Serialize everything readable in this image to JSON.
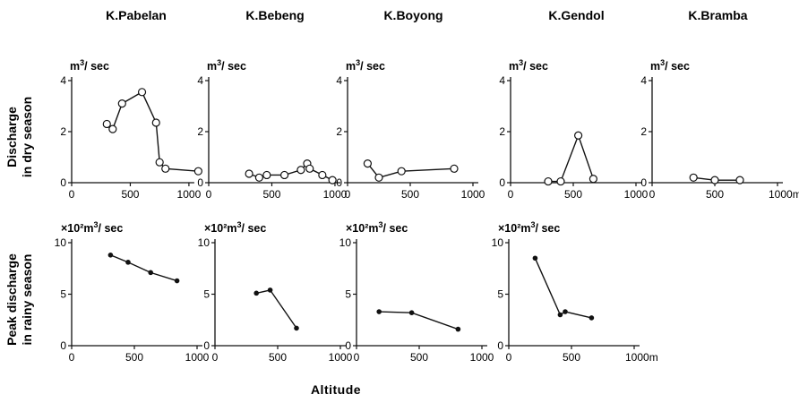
{
  "chart_data": [
    {
      "type": "line",
      "title": "K.Pabelan",
      "row_label": [
        "Discharge",
        "in dry season"
      ],
      "unit_label": "m3/ sec",
      "xlim": [
        0,
        1100
      ],
      "ylim": [
        0,
        4
      ],
      "xticks": [
        0,
        500,
        1000
      ],
      "yticks": [
        0,
        2,
        4
      ],
      "xtick_labels": [
        "0",
        "500",
        "1000"
      ],
      "ytick_labels": [
        "0",
        "2",
        "4"
      ],
      "marker": "open",
      "x": [
        300,
        350,
        430,
        600,
        720,
        750,
        800,
        1080
      ],
      "y": [
        2.3,
        2.1,
        3.1,
        3.55,
        2.35,
        0.8,
        0.55,
        0.45
      ]
    },
    {
      "type": "line",
      "title": "K.Bebeng",
      "unit_label": "m3/ sec",
      "xlim": [
        0,
        1050
      ],
      "ylim": [
        0,
        4
      ],
      "xticks": [
        0,
        500,
        1000
      ],
      "yticks": [
        0,
        2,
        4
      ],
      "xtick_labels": [
        "0",
        "500",
        "1000"
      ],
      "ytick_labels": [
        "0",
        "2",
        "4"
      ],
      "marker": "open",
      "x": [
        320,
        400,
        460,
        600,
        730,
        780,
        800,
        900,
        980
      ],
      "y": [
        0.35,
        0.2,
        0.3,
        0.3,
        0.5,
        0.75,
        0.55,
        0.3,
        0.1
      ]
    },
    {
      "type": "line",
      "title": "K.Boyong",
      "unit_label": "m3/ sec",
      "xlim": [
        0,
        1050
      ],
      "ylim": [
        0,
        4
      ],
      "xticks": [
        0,
        500,
        1000
      ],
      "yticks": [
        0,
        2,
        4
      ],
      "xtick_labels": [
        "0",
        "500",
        "1000"
      ],
      "ytick_labels": [
        "0",
        "2",
        "4"
      ],
      "marker": "open",
      "x": [
        160,
        250,
        430,
        850
      ],
      "y": [
        0.75,
        0.2,
        0.45,
        0.55
      ]
    },
    {
      "type": "line",
      "title": "K.Gendol",
      "unit_label": "m3/ sec",
      "xlim": [
        0,
        1050
      ],
      "ylim": [
        0,
        4
      ],
      "xticks": [
        0,
        500,
        1000
      ],
      "yticks": [
        0,
        2,
        4
      ],
      "xtick_labels": [
        "0",
        "500",
        "1000"
      ],
      "ytick_labels": [
        "0",
        "2",
        "4"
      ],
      "marker": "open",
      "x": [
        300,
        400,
        540,
        660
      ],
      "y": [
        0.05,
        0.05,
        1.85,
        0.15
      ]
    },
    {
      "type": "line",
      "title": "K.Bramba",
      "unit_label": "m3/ sec",
      "xlim": [
        0,
        1050
      ],
      "ylim": [
        0,
        4
      ],
      "xticks": [
        0,
        500,
        1000
      ],
      "yticks": [
        0,
        2,
        4
      ],
      "xtick_labels": [
        "0",
        "500",
        "1000m"
      ],
      "ytick_labels": [
        "0",
        "2",
        "4"
      ],
      "marker": "open",
      "x": [
        330,
        500,
        700
      ],
      "y": [
        0.2,
        0.1,
        0.1
      ]
    },
    {
      "type": "line",
      "row_label": [
        "Peak discharge",
        "in rainy season"
      ],
      "unit_label": "×10²m3/ sec",
      "xlim": [
        0,
        1050
      ],
      "ylim": [
        0,
        10
      ],
      "xticks": [
        0,
        500,
        1000
      ],
      "yticks": [
        0,
        5,
        10
      ],
      "xtick_labels": [
        "0",
        "500",
        "1000"
      ],
      "ytick_labels": [
        "0",
        "5",
        "10"
      ],
      "marker": "filled",
      "x": [
        310,
        450,
        630,
        840
      ],
      "y": [
        8.8,
        8.1,
        7.1,
        6.3
      ]
    },
    {
      "type": "line",
      "unit_label": "×10²m3/ sec",
      "xlim": [
        0,
        1050
      ],
      "ylim": [
        0,
        10
      ],
      "xticks": [
        0,
        500,
        1000
      ],
      "yticks": [
        0,
        5,
        10
      ],
      "xtick_labels": [
        "0",
        "500",
        "1000"
      ],
      "ytick_labels": [
        "0",
        "5",
        "10"
      ],
      "marker": "filled",
      "x": [
        330,
        440,
        650
      ],
      "y": [
        5.1,
        5.4,
        1.7
      ]
    },
    {
      "type": "line",
      "unit_label": "×10²m3/ sec",
      "xlim": [
        0,
        1050
      ],
      "ylim": [
        0,
        10
      ],
      "xticks": [
        0,
        500,
        1000
      ],
      "yticks": [
        0,
        5,
        10
      ],
      "xtick_labels": [
        "0",
        "500",
        "1000"
      ],
      "ytick_labels": [
        "0",
        "5",
        "10"
      ],
      "marker": "filled",
      "x": [
        180,
        440,
        810
      ],
      "y": [
        3.3,
        3.2,
        1.6
      ]
    },
    {
      "type": "line",
      "unit_label": "×10²m3/ sec",
      "xlim": [
        0,
        1050
      ],
      "ylim": [
        0,
        10
      ],
      "xticks": [
        0,
        500,
        1000
      ],
      "yticks": [
        0,
        5,
        10
      ],
      "xtick_labels": [
        "0",
        "500",
        "1000m"
      ],
      "ytick_labels": [
        "0",
        "5",
        "10"
      ],
      "marker": "filled",
      "x": [
        210,
        410,
        450,
        660
      ],
      "y": [
        8.5,
        3.0,
        3.3,
        2.7
      ]
    }
  ],
  "x_axis_title": "Altitude"
}
